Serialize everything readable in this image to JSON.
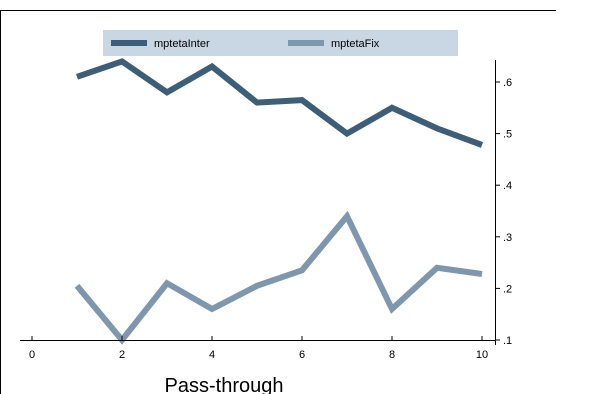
{
  "chart_data": {
    "type": "line",
    "x": [
      1,
      2,
      3,
      4,
      5,
      6,
      7,
      8,
      9,
      10
    ],
    "series": [
      {
        "name": "mptetaInter",
        "color": "#3e5d76",
        "values": [
          0.61,
          0.64,
          0.58,
          0.63,
          0.56,
          0.565,
          0.5,
          0.55,
          0.51,
          0.478
        ]
      },
      {
        "name": "mptetaFix",
        "color": "#7f97ad",
        "values": [
          0.205,
          0.1,
          0.21,
          0.16,
          0.205,
          0.235,
          0.34,
          0.16,
          0.24,
          0.228
        ]
      }
    ],
    "xlabel": "Pass-through",
    "ylabel": "",
    "xlim": [
      0,
      10
    ],
    "ylim": [
      0.1,
      0.6
    ],
    "x_ticks": [
      0,
      2,
      4,
      6,
      8,
      10
    ],
    "x_tick_labels": [
      "0",
      "2",
      "4",
      "6",
      "8",
      "10"
    ],
    "y_ticks": [
      0.1,
      0.2,
      0.3,
      0.4,
      0.5,
      0.6
    ],
    "y_tick_labels": [
      ".1",
      ".2",
      ".3",
      ".4",
      ".5",
      ".6"
    ],
    "y_axis_side": "right",
    "legend_position": "top",
    "legend_background": "#c9d6e3",
    "grid": false
  }
}
